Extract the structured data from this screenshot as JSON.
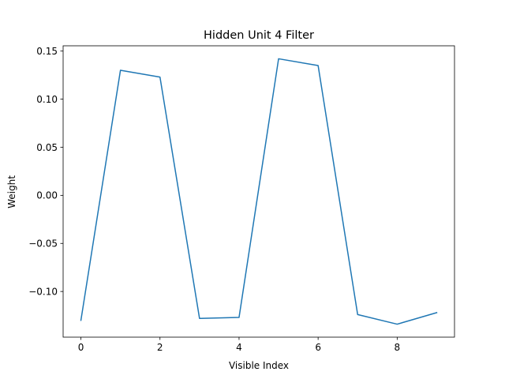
{
  "chart_data": {
    "type": "line",
    "title": "Hidden Unit 4 Filter",
    "xlabel": "Visible Index",
    "ylabel": "Weight",
    "xlim": [
      -0.45,
      9.45
    ],
    "ylim": [
      -0.1475,
      0.1555
    ],
    "x_ticks": [
      0,
      2,
      4,
      6,
      8
    ],
    "x_tick_labels": [
      "0",
      "2",
      "4",
      "6",
      "8"
    ],
    "y_ticks": [
      -0.1,
      -0.05,
      0.0,
      0.05,
      0.1,
      0.15
    ],
    "y_tick_labels": [
      "−0.10",
      "−0.05",
      "0.00",
      "0.05",
      "0.10",
      "0.15"
    ],
    "grid": false,
    "series": [
      {
        "color": "#1f77b4",
        "x": [
          0,
          1,
          2,
          3,
          4,
          5,
          6,
          7,
          8,
          9
        ],
        "values": [
          -0.13,
          0.13,
          0.123,
          -0.128,
          -0.127,
          0.142,
          0.135,
          -0.124,
          -0.134,
          -0.122
        ]
      }
    ]
  }
}
